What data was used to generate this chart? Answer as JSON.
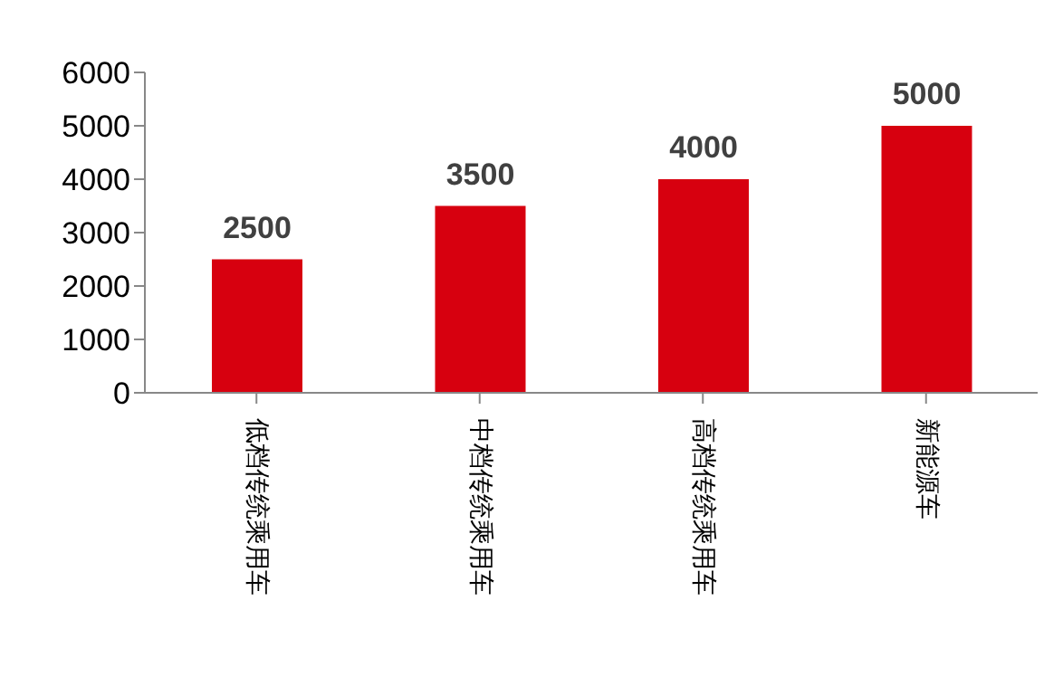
{
  "chart_data": {
    "type": "bar",
    "categories": [
      "低档传统乘用车",
      "中档传统乘用车",
      "高档传统乘用车",
      "新能源车"
    ],
    "series": [
      {
        "color": "#d7000f",
        "values": [
          2500,
          3500,
          4000,
          5000
        ]
      }
    ],
    "ylim": [
      0,
      6000
    ],
    "yticks": [
      0,
      1000,
      2000,
      3000,
      4000,
      5000,
      6000
    ],
    "grid": false,
    "legend": false,
    "data_labels": true
  }
}
